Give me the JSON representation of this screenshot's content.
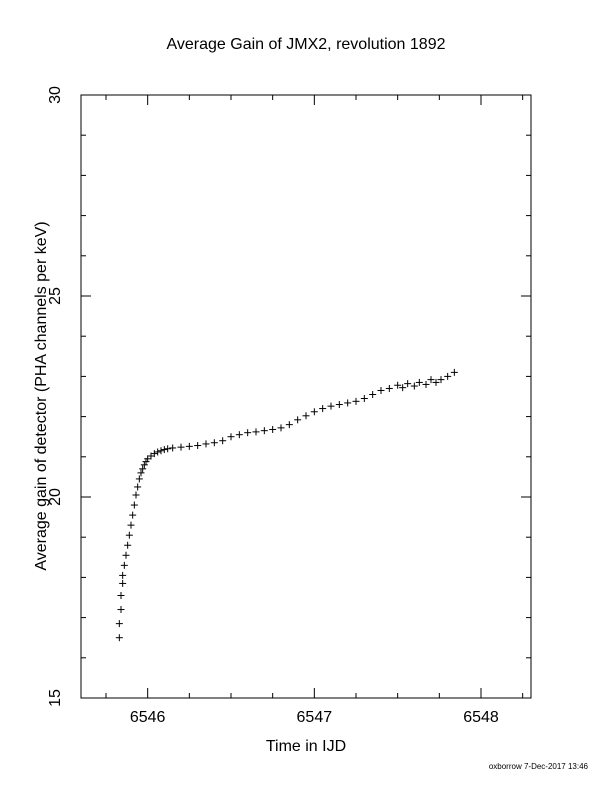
{
  "chart_data": {
    "type": "scatter",
    "title": "Average Gain of JMX2, revolution 1892",
    "xlabel": "Time in IJD",
    "ylabel": "Average gain of detector (PHA channels per keV)",
    "xlim": [
      6545.6,
      6548.3
    ],
    "ylim": [
      15,
      30
    ],
    "xticks": [
      "6546",
      "6547",
      "6548"
    ],
    "yticks": [
      "15",
      "20",
      "25",
      "30"
    ],
    "marker": "+",
    "grid": false,
    "series": [
      {
        "points": [
          [
            6545.83,
            16.5
          ],
          [
            6545.83,
            16.85
          ],
          [
            6545.84,
            17.2
          ],
          [
            6545.84,
            17.55
          ],
          [
            6545.85,
            17.85
          ],
          [
            6545.85,
            18.05
          ],
          [
            6545.86,
            18.3
          ],
          [
            6545.87,
            18.55
          ],
          [
            6545.88,
            18.8
          ],
          [
            6545.89,
            19.05
          ],
          [
            6545.9,
            19.3
          ],
          [
            6545.91,
            19.55
          ],
          [
            6545.92,
            19.8
          ],
          [
            6545.93,
            20.05
          ],
          [
            6545.94,
            20.25
          ],
          [
            6545.95,
            20.45
          ],
          [
            6545.96,
            20.6
          ],
          [
            6545.97,
            20.7
          ],
          [
            6545.98,
            20.8
          ],
          [
            6545.99,
            20.88
          ],
          [
            6546.0,
            20.95
          ],
          [
            6546.02,
            21.02
          ],
          [
            6546.04,
            21.08
          ],
          [
            6546.06,
            21.12
          ],
          [
            6546.08,
            21.15
          ],
          [
            6546.1,
            21.18
          ],
          [
            6546.12,
            21.2
          ],
          [
            6546.15,
            21.22
          ],
          [
            6546.2,
            21.24
          ],
          [
            6546.25,
            21.26
          ],
          [
            6546.3,
            21.28
          ],
          [
            6546.35,
            21.32
          ],
          [
            6546.4,
            21.35
          ],
          [
            6546.45,
            21.4
          ],
          [
            6546.5,
            21.5
          ],
          [
            6546.55,
            21.55
          ],
          [
            6546.6,
            21.6
          ],
          [
            6546.65,
            21.62
          ],
          [
            6546.7,
            21.65
          ],
          [
            6546.75,
            21.68
          ],
          [
            6546.8,
            21.72
          ],
          [
            6546.85,
            21.8
          ],
          [
            6546.9,
            21.92
          ],
          [
            6546.95,
            22.02
          ],
          [
            6547.0,
            22.12
          ],
          [
            6547.05,
            22.2
          ],
          [
            6547.1,
            22.26
          ],
          [
            6547.15,
            22.3
          ],
          [
            6547.2,
            22.34
          ],
          [
            6547.25,
            22.38
          ],
          [
            6547.3,
            22.45
          ],
          [
            6547.35,
            22.55
          ],
          [
            6547.4,
            22.65
          ],
          [
            6547.45,
            22.7
          ],
          [
            6547.5,
            22.78
          ],
          [
            6547.53,
            22.72
          ],
          [
            6547.56,
            22.82
          ],
          [
            6547.6,
            22.76
          ],
          [
            6547.63,
            22.85
          ],
          [
            6547.67,
            22.8
          ],
          [
            6547.7,
            22.92
          ],
          [
            6547.73,
            22.85
          ],
          [
            6547.76,
            22.92
          ],
          [
            6547.8,
            23.0
          ],
          [
            6547.84,
            23.1
          ]
        ]
      }
    ]
  },
  "footer": "oxborrow  7-Dec-2017 13:46"
}
